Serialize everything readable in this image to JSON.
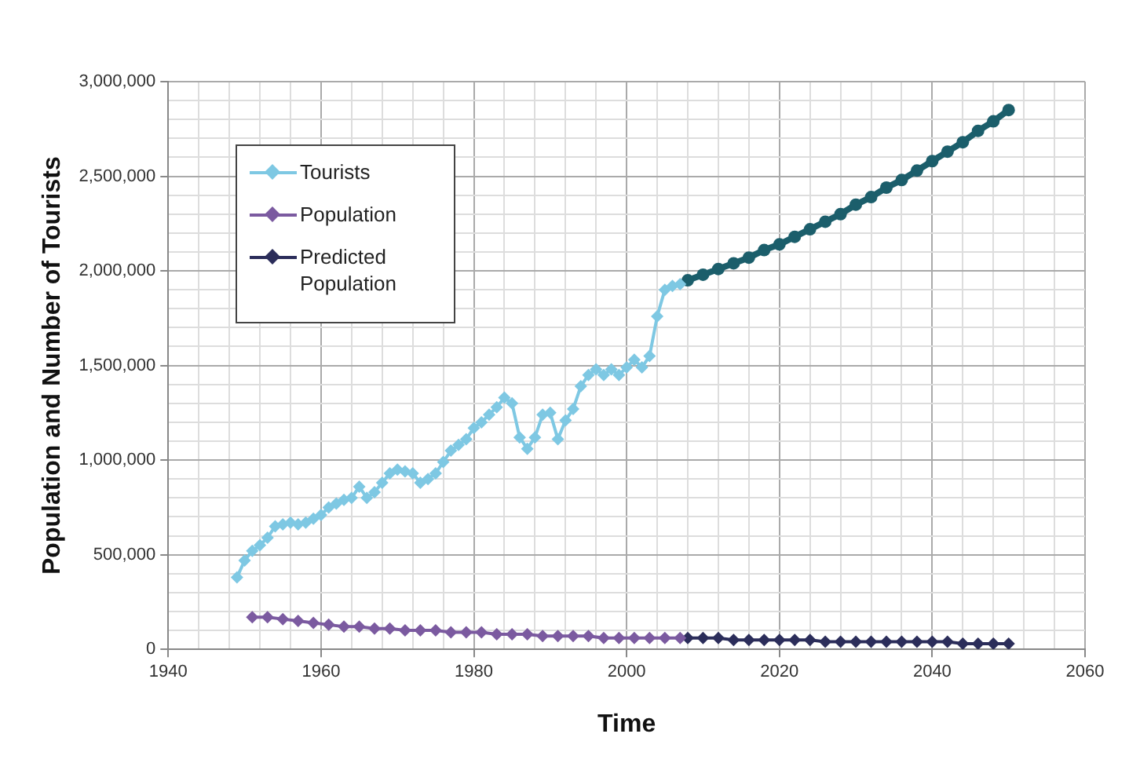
{
  "chart_data": {
    "type": "line",
    "xlabel": "Time",
    "ylabel": "Population and Number of Tourists",
    "xlim": [
      1940,
      2060
    ],
    "ylim": [
      0,
      3000000
    ],
    "xticks": [
      1940,
      {
        "value": 1944,
        "label": null
      },
      {
        "value": 1948,
        "label": null
      },
      {
        "value": 1952,
        "label": null
      },
      {
        "value": 1956,
        "label": null
      },
      1960,
      {
        "value": 1964,
        "label": null
      },
      {
        "value": 1968,
        "label": null
      },
      {
        "value": 1972,
        "label": null
      },
      {
        "value": 1976,
        "label": null
      },
      1980,
      {
        "value": 1984,
        "label": null
      },
      {
        "value": 1988,
        "label": null
      },
      {
        "value": 1992,
        "label": null
      },
      {
        "value": 1996,
        "label": null
      },
      2000,
      {
        "value": 2004,
        "label": null
      },
      {
        "value": 2008,
        "label": null
      },
      {
        "value": 2012,
        "label": null
      },
      {
        "value": 2016,
        "label": null
      },
      2020,
      {
        "value": 2024,
        "label": null
      },
      {
        "value": 2028,
        "label": null
      },
      {
        "value": 2032,
        "label": null
      },
      {
        "value": 2036,
        "label": null
      },
      2040,
      {
        "value": 2044,
        "label": null
      },
      {
        "value": 2048,
        "label": null
      },
      {
        "value": 2052,
        "label": null
      },
      {
        "value": 2056,
        "label": null
      },
      2060
    ],
    "yticks": [
      0,
      {
        "value": 100000,
        "label": null
      },
      {
        "value": 200000,
        "label": null
      },
      {
        "value": 300000,
        "label": null
      },
      {
        "value": 400000,
        "label": null
      },
      {
        "value": 500000,
        "label": "500,000"
      },
      {
        "value": 600000,
        "label": null
      },
      {
        "value": 700000,
        "label": null
      },
      {
        "value": 800000,
        "label": null
      },
      {
        "value": 900000,
        "label": null
      },
      {
        "value": 1000000,
        "label": "1,000,000"
      },
      {
        "value": 1100000,
        "label": null
      },
      {
        "value": 1200000,
        "label": null
      },
      {
        "value": 1300000,
        "label": null
      },
      {
        "value": 1400000,
        "label": null
      },
      {
        "value": 1500000,
        "label": "1,500,000"
      },
      {
        "value": 1600000,
        "label": null
      },
      {
        "value": 1700000,
        "label": null
      },
      {
        "value": 1800000,
        "label": null
      },
      {
        "value": 1900000,
        "label": null
      },
      {
        "value": 2000000,
        "label": "2,000,000"
      },
      {
        "value": 2100000,
        "label": null
      },
      {
        "value": 2200000,
        "label": null
      },
      {
        "value": 2300000,
        "label": null
      },
      {
        "value": 2400000,
        "label": null
      },
      {
        "value": 2500000,
        "label": "2,500,000"
      },
      {
        "value": 2600000,
        "label": null
      },
      {
        "value": 2700000,
        "label": null
      },
      {
        "value": 2800000,
        "label": null
      },
      {
        "value": 2900000,
        "label": null
      },
      {
        "value": 3000000,
        "label": "3,000,000"
      }
    ],
    "grid": true,
    "legend": "top left",
    "line_style": "solid",
    "series": [
      {
        "name": "Tourists",
        "color": "#7ec8e3",
        "marker": "diamond",
        "x": [
          1949,
          1950,
          1951,
          1952,
          1953,
          1954,
          1955,
          1956,
          1957,
          1958,
          1959,
          1960,
          1961,
          1962,
          1963,
          1964,
          1965,
          1966,
          1967,
          1968,
          1969,
          1970,
          1971,
          1972,
          1973,
          1974,
          1975,
          1976,
          1977,
          1978,
          1979,
          1980,
          1981,
          1982,
          1983,
          1984,
          1985,
          1986,
          1987,
          1988,
          1989,
          1990,
          1991,
          1992,
          1993,
          1994,
          1995,
          1996,
          1997,
          1998,
          1999,
          2000,
          2001,
          2002,
          2003,
          2004,
          2005,
          2006,
          2007
        ],
        "values": [
          380000,
          470000,
          520000,
          550000,
          590000,
          650000,
          660000,
          670000,
          660000,
          670000,
          690000,
          710000,
          750000,
          770000,
          790000,
          800000,
          860000,
          800000,
          830000,
          880000,
          930000,
          950000,
          940000,
          930000,
          880000,
          900000,
          930000,
          990000,
          1050000,
          1080000,
          1110000,
          1170000,
          1200000,
          1240000,
          1280000,
          1330000,
          1300000,
          1120000,
          1060000,
          1120000,
          1240000,
          1250000,
          1110000,
          1210000,
          1270000,
          1390000,
          1450000,
          1480000,
          1450000,
          1480000,
          1450000,
          1490000,
          1530000,
          1490000,
          1550000,
          1760000,
          1900000,
          1920000,
          1930000
        ]
      },
      {
        "name": "Population",
        "color": "#7b5aa0",
        "marker": "diamond",
        "x": [
          1951,
          1953,
          1955,
          1957,
          1959,
          1961,
          1963,
          1965,
          1967,
          1969,
          1971,
          1973,
          1975,
          1977,
          1979,
          1981,
          1983,
          1985,
          1987,
          1989,
          1991,
          1993,
          1995,
          1997,
          1999,
          2001,
          2003,
          2005,
          2007
        ],
        "values": [
          170000,
          170000,
          160000,
          150000,
          140000,
          130000,
          120000,
          120000,
          110000,
          110000,
          100000,
          100000,
          100000,
          90000,
          90000,
          90000,
          80000,
          80000,
          80000,
          70000,
          70000,
          70000,
          70000,
          60000,
          60000,
          60000,
          60000,
          60000,
          60000
        ]
      },
      {
        "name": "Predicted Population",
        "color": "#2b2d5a",
        "marker": "diamond",
        "x": [
          2008,
          2010,
          2012,
          2014,
          2016,
          2018,
          2020,
          2022,
          2024,
          2026,
          2028,
          2030,
          2032,
          2034,
          2036,
          2038,
          2040,
          2042,
          2044,
          2046,
          2048,
          2050
        ],
        "values": [
          60000,
          60000,
          60000,
          50000,
          50000,
          50000,
          50000,
          50000,
          50000,
          40000,
          40000,
          40000,
          40000,
          40000,
          40000,
          40000,
          40000,
          40000,
          30000,
          30000,
          30000,
          30000
        ]
      },
      {
        "color": "#1b5e6b",
        "marker": "circle",
        "x": [
          2008,
          2010,
          2012,
          2014,
          2016,
          2018,
          2020,
          2022,
          2024,
          2026,
          2028,
          2030,
          2032,
          2034,
          2036,
          2038,
          2040,
          2042,
          2044,
          2046,
          2048,
          2050
        ],
        "values": [
          1950000,
          1980000,
          2010000,
          2040000,
          2070000,
          2110000,
          2140000,
          2180000,
          2220000,
          2260000,
          2300000,
          2350000,
          2390000,
          2440000,
          2480000,
          2530000,
          2580000,
          2630000,
          2680000,
          2740000,
          2790000,
          2850000
        ]
      }
    ]
  }
}
